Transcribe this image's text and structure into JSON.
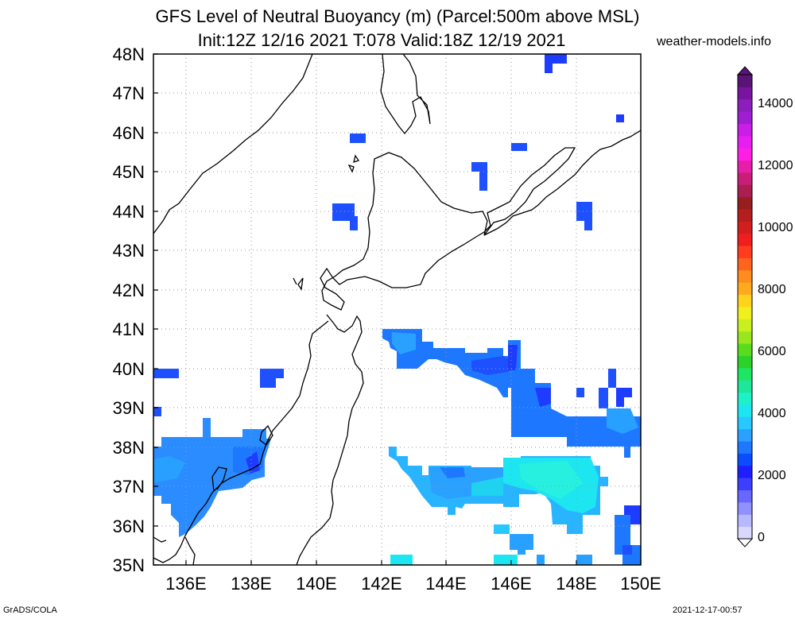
{
  "header": {
    "title_line1": "GFS Level of Neutral Buoyancy (m) (Parcel:500m above MSL)",
    "title_line2": "Init:12Z 12/16 2021 T:078 Valid:18Z 12/19 2021",
    "credit": "weather-models.info"
  },
  "map": {
    "lat_labels": [
      "48N",
      "47N",
      "46N",
      "45N",
      "44N",
      "43N",
      "42N",
      "41N",
      "40N",
      "39N",
      "38N",
      "37N",
      "36N",
      "35N"
    ],
    "lon_labels": [
      "136E",
      "138E",
      "140E",
      "142E",
      "144E",
      "146E",
      "148E",
      "150E"
    ]
  },
  "colorbar": {
    "labels": [
      "14000",
      "12000",
      "10000",
      "8000",
      "6000",
      "4000",
      "2000",
      "0"
    ],
    "colors": [
      "#d8d8ff",
      "#b8b8ff",
      "#9090ff",
      "#6868ff",
      "#3e3eff",
      "#1e1eff",
      "#0a4cff",
      "#1e78ff",
      "#2aa0ff",
      "#28c8ff",
      "#1ee6f0",
      "#1ef0c8",
      "#1ee69a",
      "#1ee664",
      "#2ad22a",
      "#5adc1e",
      "#9ae61e",
      "#c8f01e",
      "#f0f01e",
      "#ffd21e",
      "#ffaa1e",
      "#ff8c1e",
      "#ff641e",
      "#ff3c1e",
      "#f01e1e",
      "#d21e1e",
      "#b41e1e",
      "#961e1e",
      "#aa1e50",
      "#c81e78",
      "#e61eaa",
      "#ff1ee6",
      "#e61ef0",
      "#c81ee6",
      "#a01ed2",
      "#8c1ebe",
      "#7814a0",
      "#5a1478"
    ]
  },
  "footer": {
    "left": "GrADS/COLA",
    "right": "2021-12-17-00:57"
  }
}
